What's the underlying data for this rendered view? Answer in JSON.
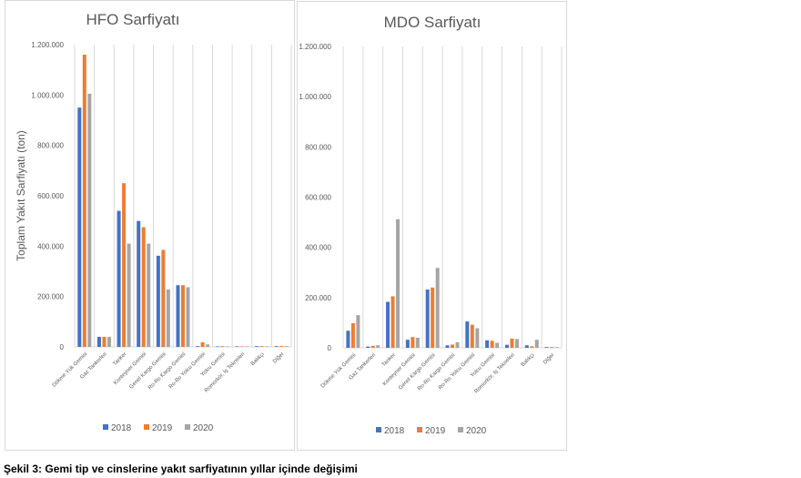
{
  "colors": {
    "2018": "#4472c4",
    "2019": "#ed7d31",
    "2020": "#a5a5a5"
  },
  "caption": "Şekil 3: Gemi tip ve cinslerine yakıt sarfiyatının yıllar içinde değişimi",
  "chart_data": [
    {
      "type": "bar",
      "title": "HFO Sarfiyatı",
      "ylabel": "Toplam  Yakıt Sarfiyatı (ton)",
      "xlabel": "",
      "ylim": [
        0,
        1200000
      ],
      "yticks": [
        "0",
        "200.000",
        "400.000",
        "600.000",
        "800.000",
        "1.000.000",
        "1.200.000"
      ],
      "grid": "vertical",
      "legend": "bottom",
      "categories": [
        "Dökme Yük Gemisi",
        "Gaz Tankerleri",
        "Tanker",
        "Konteyner Gemisi",
        "Genel Kargo Gemisi",
        "Ro-Ro Kargo Gemisi",
        "Ro-Ro Yolcu Gemisi",
        "Yolcu Gemisi",
        "Romorkör, İş Tekneleri",
        "Balıkçı",
        "Diğer"
      ],
      "series": [
        {
          "name": "2018",
          "values": [
            950000,
            40000,
            540000,
            500000,
            362000,
            245000,
            3000,
            2000,
            1000,
            3000,
            3000
          ]
        },
        {
          "name": "2019",
          "values": [
            1160000,
            40000,
            650000,
            475000,
            385000,
            245000,
            18000,
            3000,
            1000,
            3000,
            3000
          ]
        },
        {
          "name": "2020",
          "values": [
            1005000,
            40000,
            410000,
            410000,
            228000,
            237000,
            10000,
            2000,
            1000,
            2000,
            3000
          ]
        }
      ]
    },
    {
      "type": "bar",
      "title": "MDO Sarfiyatı",
      "ylabel": "",
      "xlabel": "",
      "ylim": [
        0,
        1200000
      ],
      "yticks": [
        "0",
        "200.000",
        "400.000",
        "600.000",
        "800.000",
        "1.000.000",
        "1.200.000"
      ],
      "grid": "vertical",
      "legend": "bottom",
      "categories": [
        "Dökme Yük Gemisi",
        "Gaz Tankerleri",
        "Tanker",
        "Konteyner Gemisi",
        "Genel Kargo Gemisi",
        "Ro-Ro Kargo Gemisi",
        "Ro-Ro Yolcu Gemisi",
        "Yolcu Gemisi",
        "Romorkör, İş Tekneleri",
        "Balıkçı",
        "Diğer"
      ],
      "series": [
        {
          "name": "2018",
          "values": [
            68000,
            5000,
            183000,
            32000,
            232000,
            10000,
            105000,
            30000,
            12000,
            10000,
            3000
          ]
        },
        {
          "name": "2019",
          "values": [
            98000,
            8000,
            205000,
            43000,
            240000,
            13000,
            92000,
            28000,
            37000,
            6000,
            3000
          ]
        },
        {
          "name": "2020",
          "values": [
            130000,
            10000,
            512000,
            40000,
            318000,
            22000,
            78000,
            20000,
            35000,
            32000,
            3000
          ]
        }
      ]
    }
  ]
}
